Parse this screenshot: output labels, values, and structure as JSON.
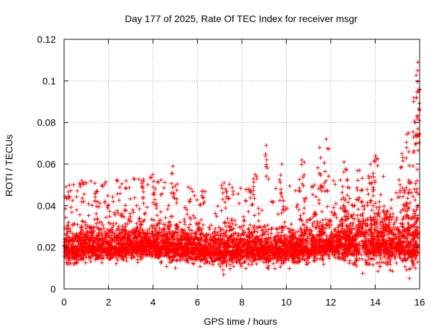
{
  "chart_data": {
    "type": "scatter",
    "title": "Day 177 of 2025, Rate Of TEC Index for receiver msgr",
    "xlabel": "GPS time / hours",
    "ylabel": "ROTI / TECUs",
    "xlim": [
      0,
      16
    ],
    "ylim": [
      0,
      0.12
    ],
    "x_ticks": [
      0,
      2,
      4,
      6,
      8,
      10,
      12,
      14,
      16
    ],
    "x_tick_labels": [
      "0",
      "2",
      "4",
      "6",
      "8",
      "10",
      "12",
      "14",
      "16"
    ],
    "y_ticks": [
      0,
      0.02,
      0.04,
      0.06,
      0.08,
      0.1,
      0.12
    ],
    "y_tick_labels": [
      "0",
      "0.02",
      "0.04",
      "0.06",
      "0.08",
      "0.1",
      "0.12"
    ],
    "grid": true,
    "marker": "+",
    "color": "#ff0000",
    "series": [
      {
        "name": "ROTI",
        "baseline": [
          [
            0.0,
            0.019
          ],
          [
            0.5,
            0.019
          ],
          [
            1.0,
            0.02
          ],
          [
            2.0,
            0.02
          ],
          [
            3.0,
            0.021
          ],
          [
            4.0,
            0.021
          ],
          [
            5.0,
            0.02
          ],
          [
            6.0,
            0.019
          ],
          [
            7.0,
            0.018
          ],
          [
            8.0,
            0.019
          ],
          [
            9.0,
            0.019
          ],
          [
            10.0,
            0.018
          ],
          [
            11.0,
            0.02
          ],
          [
            12.0,
            0.021
          ],
          [
            13.0,
            0.022
          ],
          [
            14.0,
            0.023
          ],
          [
            15.0,
            0.021
          ],
          [
            16.0,
            0.022
          ]
        ],
        "notable_points": [
          [
            0.8,
            0.052
          ],
          [
            1.5,
            0.047
          ],
          [
            3.5,
            0.052
          ],
          [
            4.0,
            0.055
          ],
          [
            4.9,
            0.059
          ],
          [
            6.2,
            0.047
          ],
          [
            7.2,
            0.051
          ],
          [
            8.6,
            0.055
          ],
          [
            9.1,
            0.069
          ],
          [
            9.8,
            0.06
          ],
          [
            10.7,
            0.062
          ],
          [
            11.5,
            0.068
          ],
          [
            11.8,
            0.072
          ],
          [
            12.6,
            0.061
          ],
          [
            13.3,
            0.057
          ],
          [
            13.8,
            0.06
          ],
          [
            14.0,
            0.064
          ],
          [
            15.2,
            0.065
          ],
          [
            15.5,
            0.075
          ],
          [
            15.8,
            0.08
          ],
          [
            15.85,
            0.092
          ],
          [
            15.9,
            0.105
          ],
          [
            15.92,
            0.109
          ],
          [
            15.98,
            0.096
          ]
        ],
        "min_value": 0.004
      }
    ]
  }
}
